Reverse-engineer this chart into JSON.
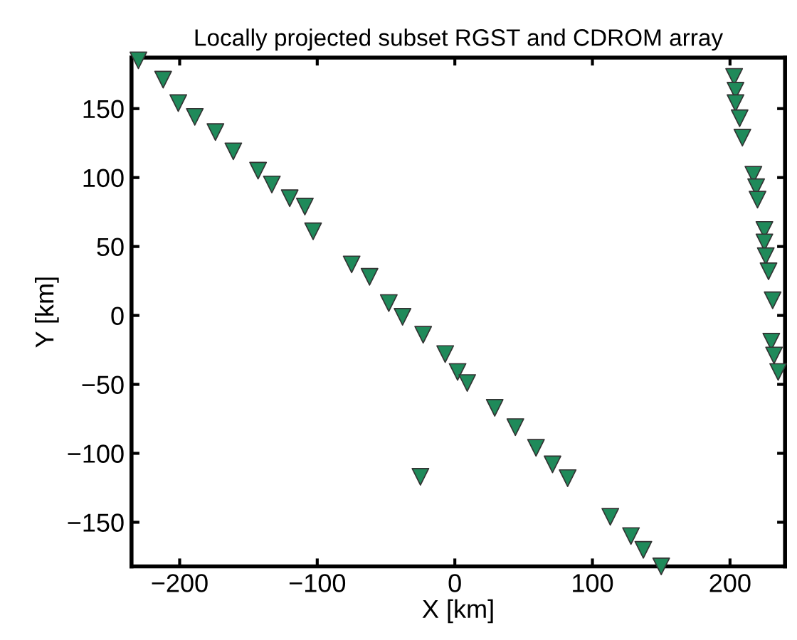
{
  "chart_data": {
    "type": "scatter",
    "title": "Locally projected subset RGST and CDROM array",
    "xlabel": "X [km]",
    "ylabel": "Y [km]",
    "marker": "triangle_down",
    "grid": false,
    "legend": false,
    "xlim": [
      -235,
      240
    ],
    "ylim": [
      -182,
      187
    ],
    "xticks": [
      -200,
      -100,
      0,
      100,
      200
    ],
    "yticks": [
      -150,
      -100,
      -50,
      0,
      50,
      100,
      150
    ],
    "series": [
      {
        "color": "#1f8a5a",
        "x": [
          -230,
          -212,
          -201,
          -189,
          -174,
          -161,
          -143,
          -133,
          -120,
          -109,
          -103,
          -75,
          -62,
          -48,
          -38,
          -23,
          -7,
          2,
          9,
          -25,
          29,
          44,
          59,
          71,
          82,
          113,
          128,
          137,
          150,
          203,
          204,
          204,
          207,
          209,
          217,
          219,
          220,
          225,
          225,
          226,
          228,
          231,
          230,
          232,
          235
        ],
        "values": [
          185,
          171,
          154,
          144,
          133,
          119,
          105,
          95,
          85,
          79,
          61,
          37,
          28,
          9,
          -1,
          -14,
          -28,
          -41,
          -49,
          -117,
          -67,
          -81,
          -96,
          -108,
          -118,
          -146,
          -160,
          -170,
          -182,
          173,
          163,
          154,
          143,
          129,
          102,
          93,
          84,
          62,
          53,
          43,
          32,
          11,
          -19,
          -29,
          -41
        ]
      }
    ]
  }
}
